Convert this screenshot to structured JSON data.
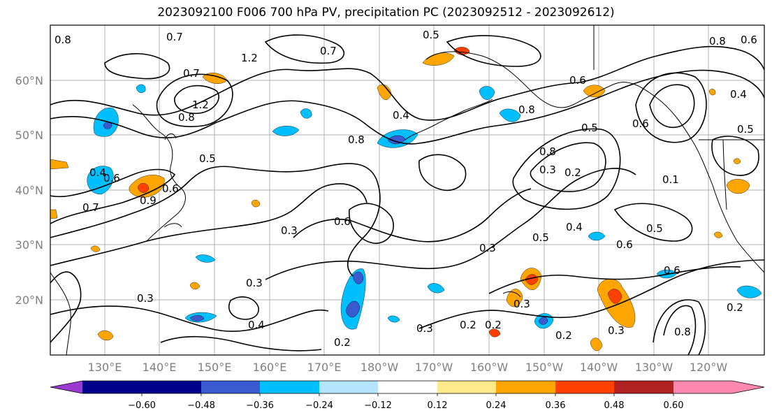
{
  "title": "2023092100 F006 700 hPa PV, precipitation PC (2023092512 - 2023092612)",
  "lat_ticks": [
    "60°N",
    "50°N",
    "40°N",
    "30°N",
    "20°N"
  ],
  "lon_ticks": [
    "130°E",
    "140°E",
    "150°E",
    "160°E",
    "170°E",
    "180°W",
    "170°W",
    "160°W",
    "150°W",
    "140°W",
    "130°W",
    "120°W"
  ],
  "colorbar": {
    "colors": [
      "#9a3ad0",
      "#00008a",
      "#3a5ad0",
      "#00bfff",
      "#b4e4ff",
      "#ffffff",
      "#ffe98a",
      "#ffa500",
      "#ff4000",
      "#b22222",
      "#ff88b0"
    ],
    "tick_labels": [
      "−0.60",
      "−0.48",
      "−0.36",
      "−0.24",
      "−0.12",
      "0.12",
      "0.24",
      "0.36",
      "0.48",
      "0.60"
    ]
  },
  "contour_labels": [
    "0.8",
    "0.7",
    "1.2",
    "0.7",
    "0.7",
    "0.5",
    "0.6",
    "1.2",
    "0.8",
    "0.4",
    "0.5",
    "0.8",
    "0.6",
    "0.5",
    "0.8",
    "0.4",
    "0.7",
    "0.9",
    "0.6",
    "0.5",
    "0.3",
    "0.6",
    "0.3",
    "0.5",
    "0.4",
    "0.3",
    "0.2",
    "0.8",
    "0.6",
    "0.6",
    "0.3",
    "0.4",
    "0.3",
    "0.3",
    "0.2",
    "0.2",
    "0.3",
    "0.2",
    "0.3",
    "0.2",
    "0.1",
    "0.5",
    "0.4",
    "0.8",
    "0.6",
    "0.6",
    "0.2",
    "0.8"
  ]
}
